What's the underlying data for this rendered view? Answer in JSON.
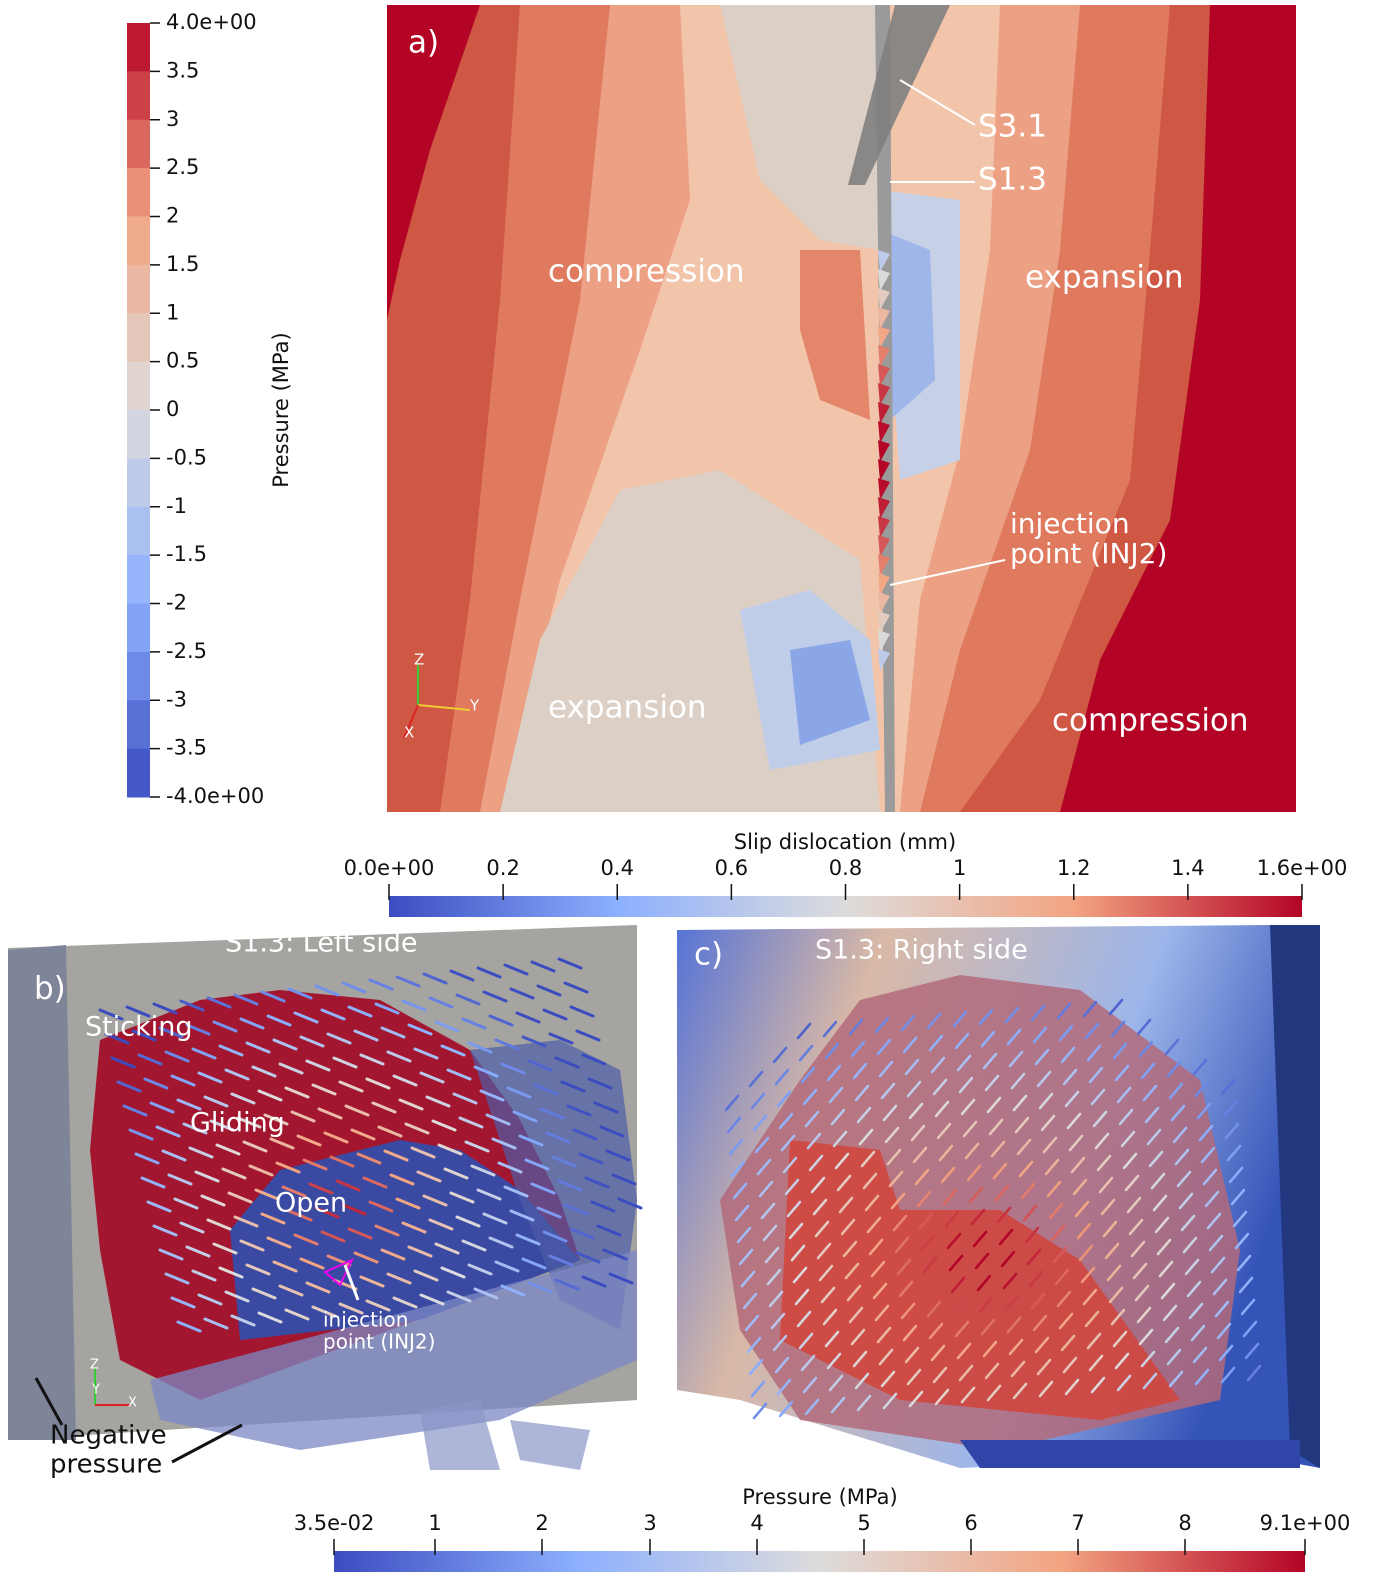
{
  "figure": {
    "pressure_colorbar_a": {
      "title": "Pressure (MPa)",
      "ticks": [
        "4.0e+00",
        "3.5",
        "3",
        "2.5",
        "2",
        "1.5",
        "1",
        "0.5",
        "0",
        "-0.5",
        "-1",
        "-1.5",
        "-2",
        "-2.5",
        "-3",
        "-3.5",
        "-4.0e+00"
      ]
    },
    "panel_a": {
      "label": "a)",
      "regions": [
        "compression",
        "expansion",
        "expansion",
        "compression"
      ],
      "faults": [
        "S3.1",
        "S1.3"
      ],
      "injection": [
        "injection",
        "point (INJ2)"
      ],
      "axes": [
        "Z",
        "Y",
        "X"
      ]
    },
    "slip_colorbar": {
      "title": "Slip dislocation (mm)",
      "ticks": [
        "0.0e+00",
        "0.2",
        "0.4",
        "0.6",
        "0.8",
        "1",
        "1.2",
        "1.4",
        "1.6e+00"
      ]
    },
    "panel_b": {
      "label": "b)",
      "title": "S1.3: Left side",
      "states": [
        "Sticking",
        "Gliding",
        "Open"
      ],
      "injection": [
        "injection",
        "point (INJ2)"
      ],
      "negative": [
        "Negative",
        "pressure"
      ],
      "axes": [
        "Z",
        "Y",
        "X"
      ]
    },
    "panel_c": {
      "label": "c)",
      "title": "S1.3: Right side"
    },
    "pressure_colorbar_bc": {
      "title": "Pressure (MPa)",
      "ticks": [
        "3.5e-02",
        "1",
        "2",
        "3",
        "4",
        "5",
        "6",
        "7",
        "8",
        "9.1e+00"
      ]
    }
  }
}
